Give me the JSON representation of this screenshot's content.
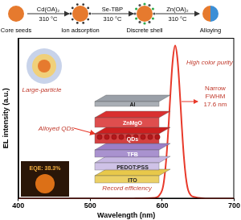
{
  "chart_data": {
    "type": "line",
    "x_label": "Wavelength (nm)",
    "y_label": "EL intensity (a.u.)",
    "x": [
      400,
      500,
      560,
      590,
      595,
      600,
      603,
      606,
      609,
      612,
      615,
      618,
      621,
      624,
      627,
      630,
      633,
      636,
      640,
      645,
      650,
      660,
      680,
      700
    ],
    "values": [
      0,
      0,
      0,
      0.005,
      0.015,
      0.056,
      0.135,
      0.28,
      0.49,
      0.73,
      0.92,
      1,
      0.92,
      0.73,
      0.49,
      0.28,
      0.135,
      0.056,
      0.02,
      0.01,
      0.005,
      0,
      0,
      0
    ],
    "color": "#e8392a",
    "xlim": [
      400,
      700
    ],
    "xticks": [
      400,
      500,
      600,
      700
    ],
    "ylim": [
      0,
      1.05
    ],
    "yticks": [],
    "tick_labels": "x",
    "grid": false
  },
  "scheme": {
    "stages": [
      "Core seeds",
      "Ion adsorption",
      "Discrete shell",
      "Alloying"
    ],
    "steps": [
      {
        "reagent": "Cd(OA)₂",
        "temperature": "310 °C"
      },
      {
        "reagent": "Se-TBP",
        "temperature": "310 °C"
      },
      {
        "reagent": "Zn(OA)₂",
        "temperature": "310 °C"
      }
    ]
  },
  "device_layers": [
    "Al",
    "ZnMgO",
    "QDs",
    "TFB",
    "PEDOT:PSS",
    "ITO"
  ],
  "annotations": {
    "particle": "Large-particle",
    "qds": "Alloyed QDs",
    "efficiency": "Record efficiency",
    "eqe": "EQE: 38.3%",
    "purity": "High color purity",
    "fwhm": [
      "Narrow",
      "FWHM",
      "17.6 nm"
    ]
  }
}
